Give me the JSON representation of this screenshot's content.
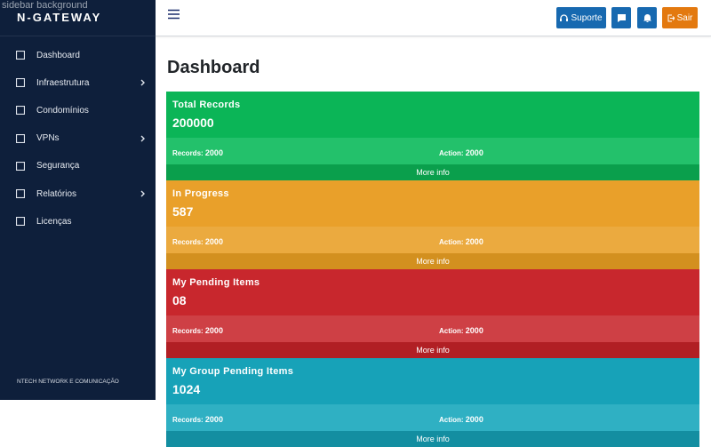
{
  "sidebar": {
    "image_alt": "sidebar background",
    "brand": "N-GATEWAY",
    "menu": [
      {
        "label": "Dashboard",
        "arrow": false
      },
      {
        "label": "Infraestrutura",
        "arrow": true
      },
      {
        "label": "Condomínios",
        "arrow": false
      },
      {
        "label": "VPNs",
        "arrow": true
      },
      {
        "label": "Segurança",
        "arrow": false
      },
      {
        "label": "Relatórios",
        "arrow": true
      },
      {
        "label": "Licenças",
        "arrow": false
      }
    ],
    "footer": "NTECH NETWORK E COMUNICAÇÃO"
  },
  "topbar": {
    "support": "Suporte",
    "logout": "Sair"
  },
  "page": {
    "title": "Dashboard",
    "cards": [
      {
        "title": "Total Records",
        "value": "200000",
        "records_label": "Records:",
        "records": "2000",
        "action_label": "Action:",
        "action": "2000",
        "more": "More info",
        "color": "#0bb557",
        "stats_color": "#23c16b",
        "more_color": "#0a9f4c"
      },
      {
        "title": "In Progress",
        "value": "587",
        "records_label": "Records:",
        "records": "2000",
        "action_label": "Action:",
        "action": "2000",
        "more": "More info",
        "color": "#e9a02a",
        "stats_color": "#ebaa3f",
        "more_color": "#d3901f"
      },
      {
        "title": "My Pending Items",
        "value": "08",
        "records_label": "Records:",
        "records": "2000",
        "action_label": "Action:",
        "action": "2000",
        "more": "More info",
        "color": "#c8272d",
        "stats_color": "#ce4045",
        "more_color": "#b11f24"
      },
      {
        "title": "My Group Pending Items",
        "value": "1024",
        "records_label": "Records:",
        "records": "2000",
        "action_label": "Action:",
        "action": "2000",
        "more": "More info",
        "color": "#17a2b8",
        "stats_color": "#2fb0c3",
        "more_color": "#138ea1"
      }
    ]
  }
}
